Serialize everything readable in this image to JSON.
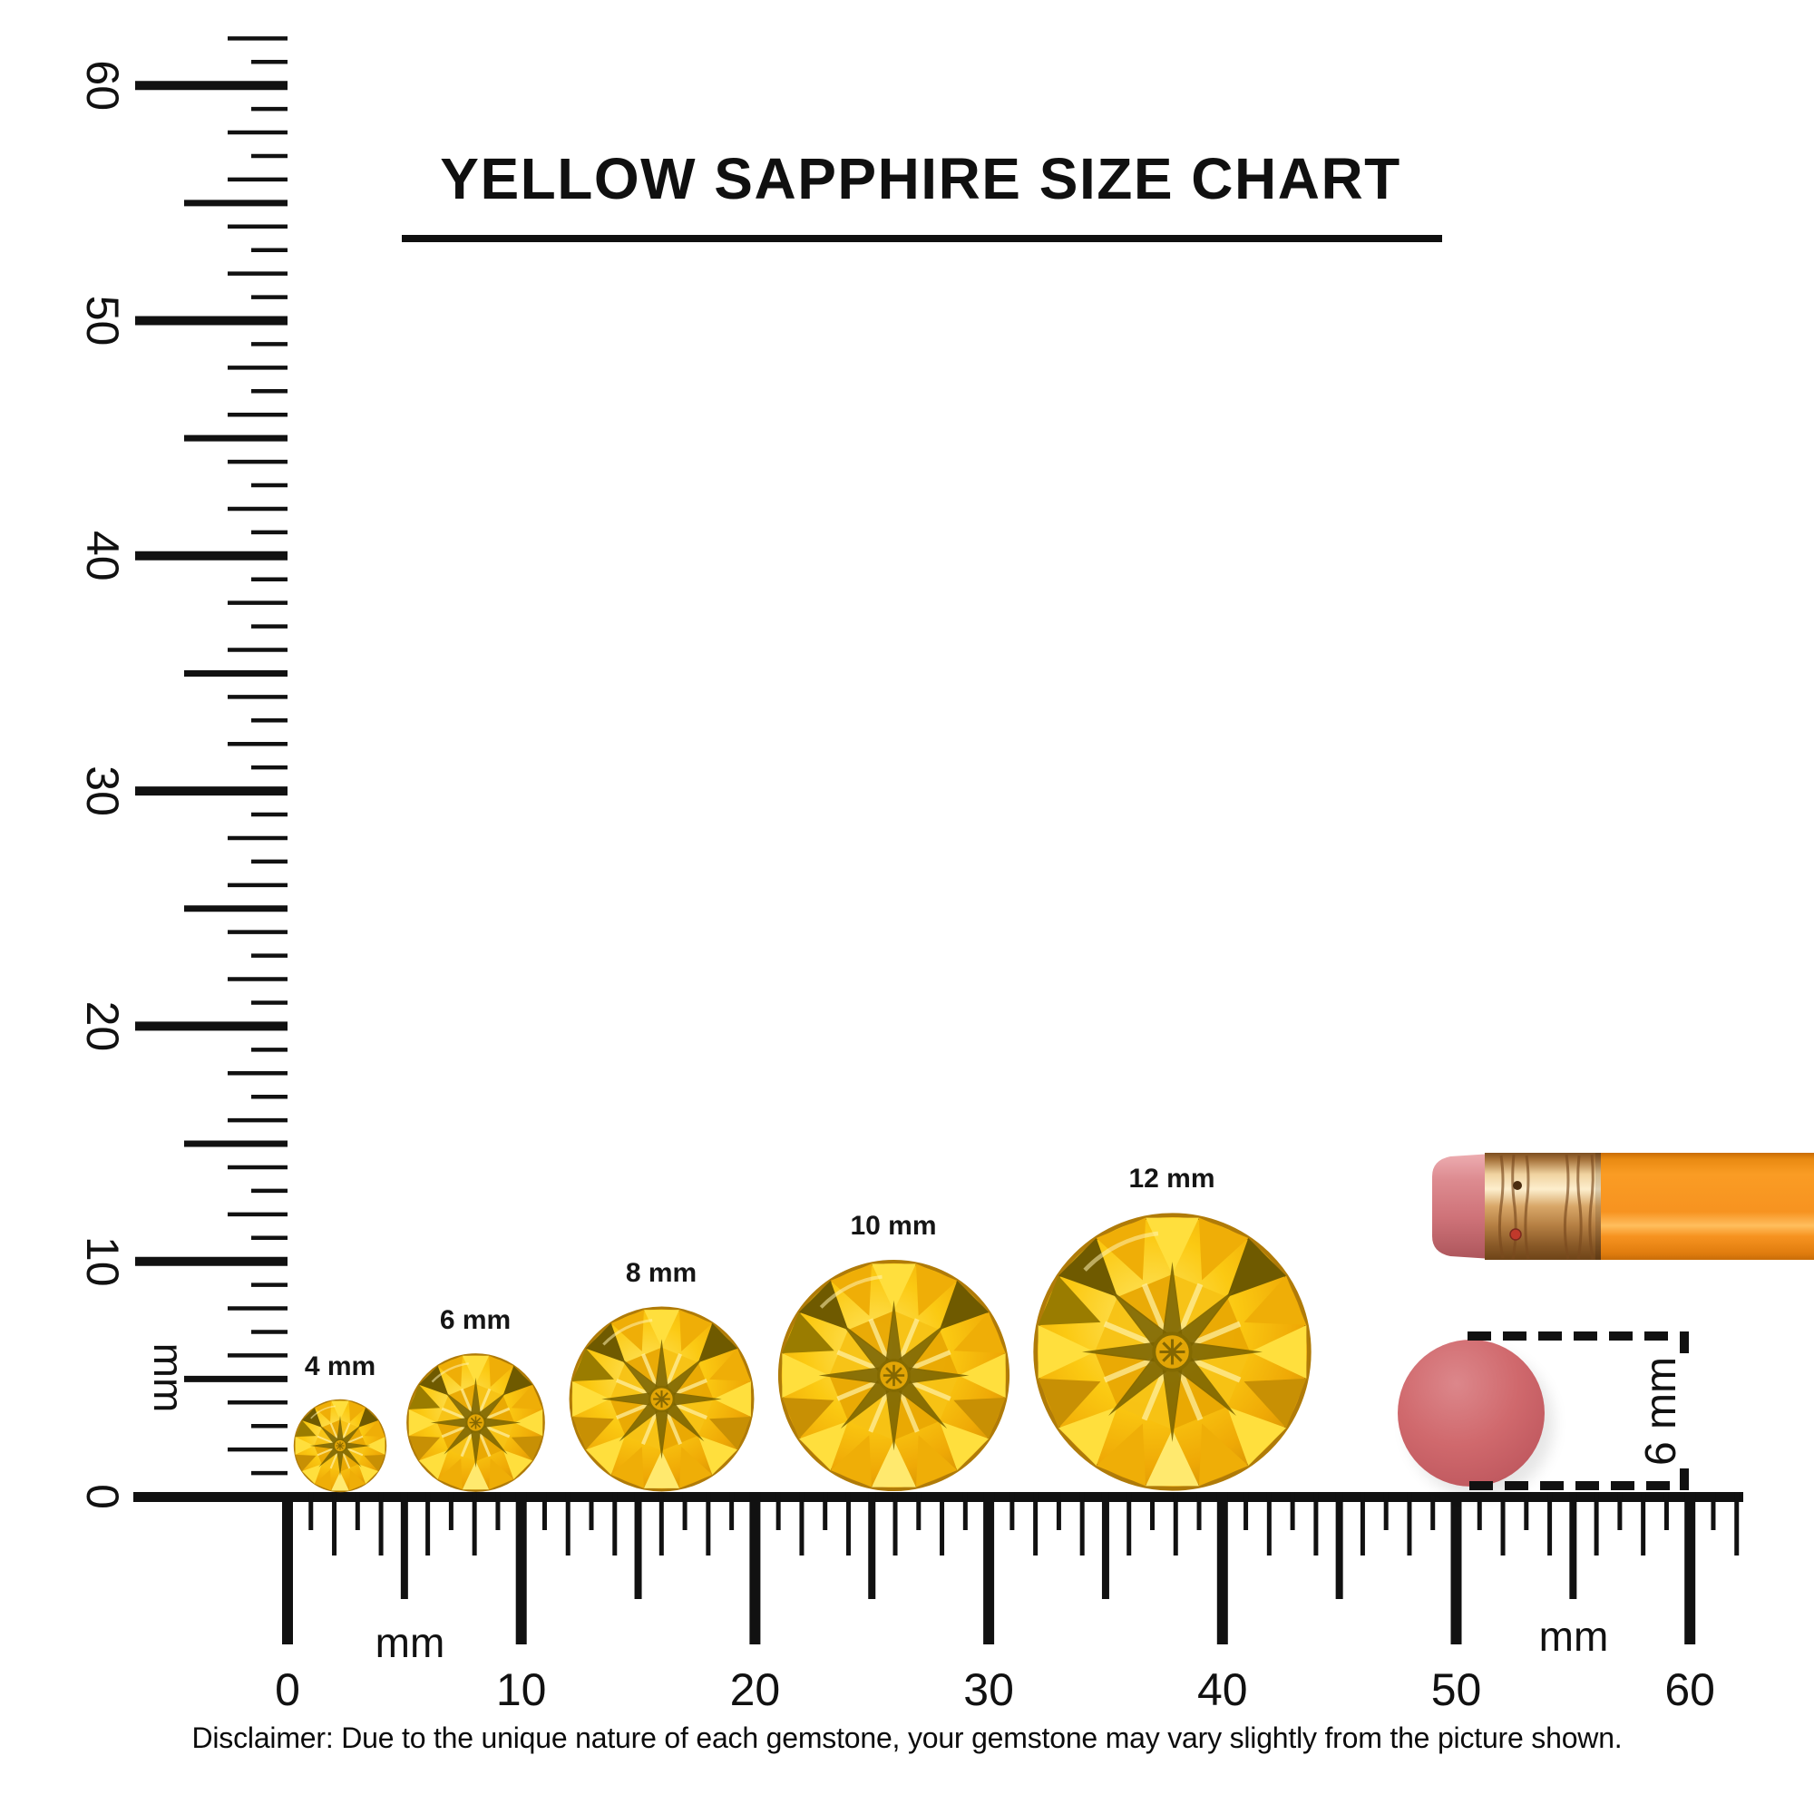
{
  "title": "YELLOW SAPPHIRE SIZE CHART",
  "gems": [
    {
      "label": "4 mm",
      "mm": 4
    },
    {
      "label": "6 mm",
      "mm": 6
    },
    {
      "label": "8 mm",
      "mm": 8
    },
    {
      "label": "10 mm",
      "mm": 10
    },
    {
      "label": "12 mm",
      "mm": 12
    }
  ],
  "ruler": {
    "unit_label": "mm",
    "min_mm": 0,
    "max_mm": 60,
    "major_step_mm": 10,
    "mid_step_mm": 5,
    "vertical_numbers": [
      "0",
      "10",
      "20",
      "30",
      "40",
      "50",
      "60"
    ],
    "horizontal_numbers": [
      "0",
      "10",
      "20",
      "30",
      "40",
      "50",
      "60"
    ]
  },
  "eraser_annotation": {
    "label": "6 mm",
    "mm": 6
  },
  "disclaimer": "Disclaimer: Due to the unique nature of each gemstone, your gemstone may vary slightly from the picture shown.",
  "colors": {
    "ink": "#111111",
    "gem_yellow": "#FBC912",
    "gem_bright": "#FFDF3D",
    "gem_dark_facet": "#6F5A00",
    "pencil_orange": "#F79320",
    "ferrule_copper": "#C8884F",
    "eraser_pink": "#D47A80",
    "eraser_disc": "#CE686C"
  }
}
